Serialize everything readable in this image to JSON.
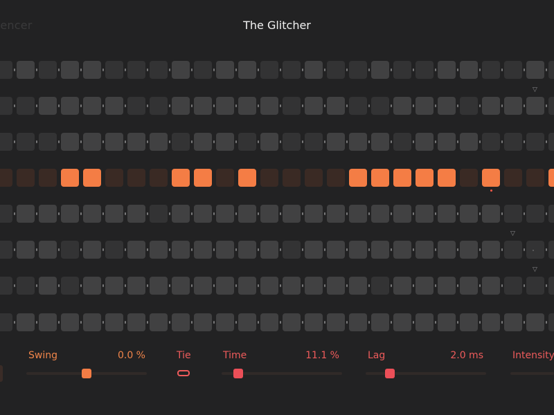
{
  "header": {
    "left_title": "uencer",
    "title": "The Glitcher"
  },
  "sequencer": {
    "columns": 26,
    "rows": [
      {
        "lit": [
          1,
          3,
          4,
          8,
          10,
          11,
          14,
          17,
          20,
          21,
          24
        ]
      },
      {
        "lit": [
          2,
          3,
          4,
          5,
          8,
          9,
          10,
          11,
          12,
          14,
          15,
          18,
          19,
          20,
          22,
          23,
          24
        ],
        "marker_col": 24
      },
      {
        "lit": [
          3,
          4,
          5,
          6,
          7,
          9,
          10,
          12,
          15,
          16,
          17,
          19,
          20,
          21
        ]
      },
      {
        "on": [
          3,
          4,
          8,
          9,
          11,
          16,
          17,
          18,
          19,
          20,
          22,
          25
        ],
        "active": true,
        "playhead_col": 22
      },
      {
        "lit": [
          1,
          2,
          3,
          4,
          5,
          6,
          8,
          9,
          10,
          11,
          12,
          13,
          14,
          15,
          16,
          17,
          18,
          19,
          20,
          21,
          22
        ]
      },
      {
        "lit": [
          1,
          2,
          4,
          6,
          7,
          8,
          9,
          10,
          11,
          12,
          14,
          15,
          16,
          17,
          18,
          19,
          20,
          21,
          22
        ],
        "marker_col": 23
      },
      {
        "lit": [
          2,
          4,
          5,
          6,
          7,
          8,
          9,
          10,
          11,
          12,
          13,
          14,
          15,
          16,
          18,
          19,
          20,
          21,
          22
        ],
        "marker_col": 24
      },
      {
        "lit": [
          1,
          2,
          3,
          4,
          5,
          6,
          7,
          8,
          9,
          10,
          11,
          12,
          13,
          14,
          15,
          16,
          17,
          18,
          19,
          20,
          21,
          22,
          23,
          24
        ]
      }
    ]
  },
  "controls": {
    "swing": {
      "label": "Swing",
      "value": "0.0 %",
      "level": 0.5
    },
    "tie": {
      "label": "Tie"
    },
    "time": {
      "label": "Time",
      "value": "11.1 %",
      "level": 0.11
    },
    "lag": {
      "label": "Lag",
      "value": "2.0 ms",
      "level": 0.2
    },
    "intensity": {
      "label": "Intensity"
    }
  },
  "colors": {
    "accent_orange": "#f47d45",
    "accent_red": "#ec4f58",
    "step_light": "#414142",
    "step_dark": "#333334"
  }
}
